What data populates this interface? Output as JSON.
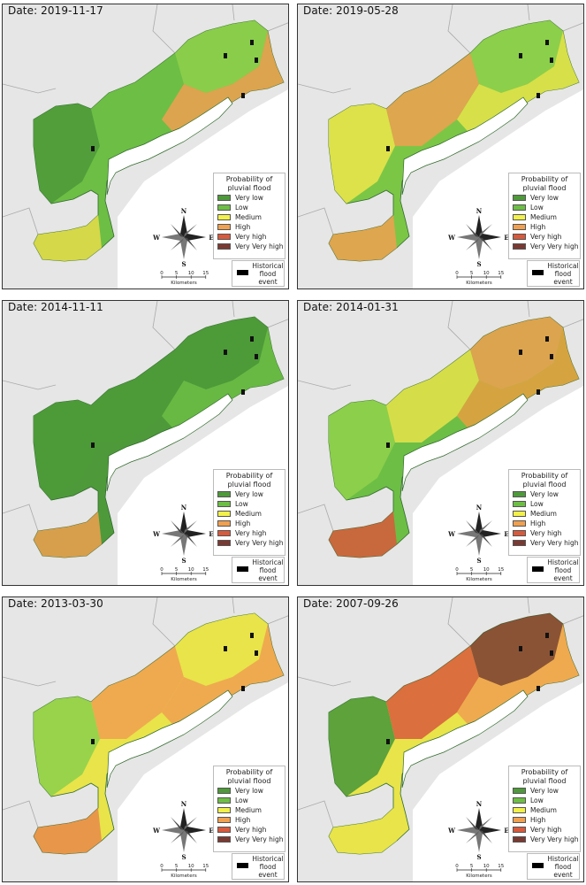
{
  "panels": [
    {
      "date": "Date: 2019-11-17",
      "scheme": [
        "#6dbe45",
        "#4e9a3a",
        "#6dbe45",
        "#8fd04b",
        "#f0a050",
        "#e8dd4a"
      ]
    },
    {
      "date": "Date: 2019-05-28",
      "scheme": [
        "#7cc646",
        "#e8e44a",
        "#f0a050",
        "#8fd04b",
        "#e8e44a",
        "#f0a050"
      ]
    },
    {
      "date": "Date: 2014-11-11",
      "scheme": [
        "#4e9a3a",
        "#4e9a3a",
        "#4e9a3a",
        "#4e9a3a",
        "#6dbe45",
        "#f0a050"
      ]
    },
    {
      "date": "Date: 2014-01-31",
      "scheme": [
        "#6dbe45",
        "#8fd04b",
        "#e8e44a",
        "#f0a050",
        "#e8a040",
        "#d85a3c"
      ]
    },
    {
      "date": "Date: 2013-03-30",
      "scheme": [
        "#e8e44a",
        "#8fd04b",
        "#f0a050",
        "#e8e44a",
        "#f0a050",
        "#e88a4a"
      ]
    },
    {
      "date": "Date: 2007-09-26",
      "scheme": [
        "#e8e44a",
        "#4e9a3a",
        "#d85a3c",
        "#7a3a32",
        "#f0a050",
        "#e8e44a"
      ]
    }
  ],
  "legend": {
    "title_line1": "Probability of",
    "title_line2": "pluvial flood",
    "items": [
      {
        "label": "Very low",
        "color": "#4e9a3a"
      },
      {
        "label": "Low",
        "color": "#6dbe45"
      },
      {
        "label": "Medium",
        "color": "#f2f04a"
      },
      {
        "label": "High",
        "color": "#f0a050"
      },
      {
        "label": "Very high",
        "color": "#d85a3c"
      },
      {
        "label": "Very Very high",
        "color": "#7a3a32"
      }
    ],
    "historical_label_1": "Historical",
    "historical_label_2": "flood",
    "historical_label_3": "event"
  },
  "compass": {
    "n": "N",
    "s": "S",
    "e": "E",
    "w": "W"
  },
  "scale": {
    "ticks": [
      "0",
      "5",
      "10",
      "15"
    ],
    "unit": "Kilometers"
  }
}
